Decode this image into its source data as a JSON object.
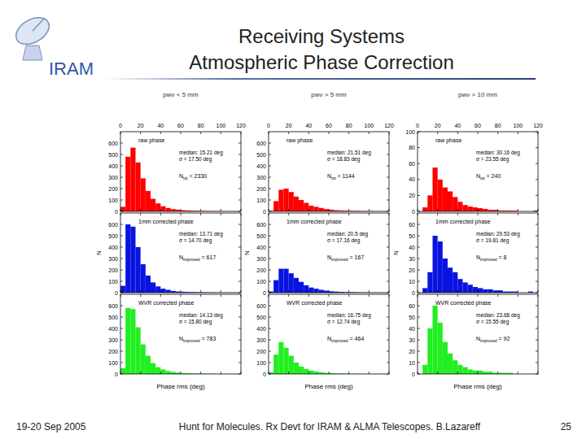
{
  "slide": {
    "logo_text": "IRAM",
    "title_lines": [
      "Receiving Systems",
      "Atmospheric Phase Correction"
    ],
    "footer_left": "19-20 Sep 2005",
    "footer_center": "Hunt for Molecules. Rx Devt for IRAM & ALMA Telescopes. B.Lazareff",
    "page_number": "25"
  },
  "chart_data": [
    {
      "type": "histogram",
      "subtitle": "pwv < 5 mm",
      "title": "raw phase",
      "color": "#ff0000",
      "bins": [
        0,
        5,
        10,
        15,
        20,
        25,
        30,
        35,
        40,
        45,
        50,
        55,
        60,
        65,
        70,
        75,
        80,
        85,
        90,
        95,
        100,
        105,
        110,
        115,
        120
      ],
      "values": [
        40,
        480,
        560,
        430,
        290,
        180,
        110,
        70,
        45,
        30,
        20,
        15,
        10,
        8,
        6,
        5,
        4,
        3,
        2,
        2,
        1,
        1,
        1,
        1
      ],
      "xlim": [
        0,
        120
      ],
      "xticks": [
        0,
        20,
        40,
        60,
        80,
        100,
        120
      ],
      "ylim": [
        0,
        700
      ],
      "yticks": [
        0,
        100,
        200,
        300,
        400,
        500,
        600
      ],
      "annotations": [
        "median: 15.21 deg",
        "σ = 17.50 deg",
        {
          "text": "N",
          "sub": "tot",
          "rest": " = 2330"
        }
      ]
    },
    {
      "type": "histogram",
      "title": "1mm corrected phase",
      "color": "#0a14e0",
      "ylabel": "N",
      "tick_labels": "y",
      "bins": [
        0,
        5,
        10,
        15,
        20,
        25,
        30,
        35,
        40,
        45,
        50,
        55,
        60,
        65,
        70,
        75,
        80,
        85,
        90,
        95,
        100,
        105,
        110,
        115,
        120
      ],
      "values": [
        60,
        600,
        580,
        400,
        250,
        150,
        90,
        55,
        35,
        25,
        15,
        10,
        8,
        6,
        5,
        4,
        3,
        2,
        2,
        1,
        1,
        1,
        1,
        1
      ],
      "xlim": [
        0,
        120
      ],
      "xticks": [
        0,
        20,
        40,
        60,
        80,
        100,
        120
      ],
      "ylim": [
        0,
        700
      ],
      "yticks": [
        0,
        100,
        200,
        300,
        400,
        500,
        600
      ],
      "annotations": [
        "median: 13.71 deg",
        "σ = 14.70 deg",
        {
          "text": "N",
          "sub": "improved",
          "rest": " = 617"
        }
      ]
    },
    {
      "type": "histogram",
      "title": "WVR corrected phase",
      "color": "#22ee22",
      "xlabel": "Phase rms (deg)",
      "tick_labels": "y",
      "bins": [
        0,
        5,
        10,
        15,
        20,
        25,
        30,
        35,
        40,
        45,
        50,
        55,
        60,
        65,
        70,
        75,
        80,
        85,
        90,
        95,
        100,
        105,
        110,
        115,
        120
      ],
      "values": [
        50,
        580,
        570,
        410,
        260,
        160,
        95,
        60,
        40,
        25,
        18,
        12,
        8,
        6,
        5,
        4,
        3,
        2,
        2,
        1,
        1,
        1,
        1,
        1
      ],
      "xlim": [
        0,
        120
      ],
      "xticks": [
        0,
        20,
        40,
        60,
        80,
        100,
        120
      ],
      "ylim": [
        0,
        700
      ],
      "yticks": [
        0,
        100,
        200,
        300,
        400,
        500,
        600
      ],
      "annotations": [
        "median: 14.13 deg",
        "σ = 15.80 deg",
        {
          "text": "N",
          "sub": "improved",
          "rest": " = 783"
        }
      ]
    },
    {
      "type": "histogram",
      "subtitle": "pwv > 5 mm",
      "title": "raw phase",
      "color": "#ff0000",
      "bins": [
        0,
        5,
        10,
        15,
        20,
        25,
        30,
        35,
        40,
        45,
        50,
        55,
        60,
        65,
        70,
        75,
        80,
        85,
        90,
        95,
        100,
        105,
        110,
        115,
        120
      ],
      "values": [
        5,
        90,
        190,
        200,
        170,
        130,
        100,
        75,
        50,
        40,
        30,
        20,
        15,
        10,
        8,
        6,
        5,
        4,
        3,
        2,
        2,
        1,
        1,
        1
      ],
      "xlim": [
        0,
        120
      ],
      "xticks": [
        0,
        20,
        40,
        60,
        80,
        100,
        120
      ],
      "ylim": [
        0,
        700
      ],
      "yticks": [
        0,
        100,
        200,
        300,
        400,
        500,
        600
      ],
      "annotations": [
        "median: 21.51 deg",
        "σ = 18.83 deg",
        {
          "text": "N",
          "sub": "tot",
          "rest": " = 1144"
        }
      ]
    },
    {
      "type": "histogram",
      "title": "1mm corrected phase",
      "color": "#0a14e0",
      "ylabel": "N",
      "tick_labels": "y",
      "bins": [
        0,
        5,
        10,
        15,
        20,
        25,
        30,
        35,
        40,
        45,
        50,
        55,
        60,
        65,
        70,
        75,
        80,
        85,
        90,
        95,
        100,
        105,
        110,
        115,
        120
      ],
      "values": [
        10,
        110,
        210,
        210,
        170,
        130,
        95,
        65,
        45,
        35,
        25,
        18,
        12,
        9,
        7,
        5,
        4,
        3,
        2,
        2,
        1,
        1,
        1,
        1
      ],
      "xlim": [
        0,
        120
      ],
      "xticks": [
        0,
        20,
        40,
        60,
        80,
        100,
        120
      ],
      "ylim": [
        0,
        700
      ],
      "yticks": [
        0,
        100,
        200,
        300,
        400,
        500,
        600
      ],
      "annotations": [
        "median: 20.5 deg",
        "σ = 17.16 deg",
        {
          "text": "N",
          "sub": "improved",
          "rest": " = 167"
        }
      ]
    },
    {
      "type": "histogram",
      "title": "WVR corrected phase",
      "color": "#22ee22",
      "xlabel": "Phase rms (deg)",
      "tick_labels": "y",
      "bins": [
        0,
        5,
        10,
        15,
        20,
        25,
        30,
        35,
        40,
        45,
        50,
        55,
        60,
        65,
        70,
        75,
        80,
        85,
        90,
        95,
        100,
        105,
        110,
        115,
        120
      ],
      "values": [
        15,
        170,
        280,
        230,
        160,
        100,
        65,
        45,
        30,
        22,
        15,
        10,
        8,
        6,
        4,
        3,
        2,
        2,
        1,
        1,
        1,
        1,
        1,
        1
      ],
      "xlim": [
        0,
        120
      ],
      "xticks": [
        0,
        20,
        40,
        60,
        80,
        100,
        120
      ],
      "ylim": [
        0,
        700
      ],
      "yticks": [
        0,
        100,
        200,
        300,
        400,
        500,
        600
      ],
      "annotations": [
        "median: 16.75 deg",
        "σ = 12.74 deg",
        {
          "text": "N",
          "sub": "improved",
          "rest": " = 464"
        }
      ]
    },
    {
      "type": "histogram",
      "subtitle": "pwv > 10 mm",
      "title": "raw phase",
      "color": "#ff0000",
      "bins": [
        0,
        5,
        10,
        15,
        20,
        25,
        30,
        35,
        40,
        45,
        50,
        55,
        60,
        65,
        70,
        75,
        80,
        85,
        90,
        95,
        100,
        105,
        110,
        115,
        120
      ],
      "values": [
        0,
        5,
        20,
        55,
        40,
        30,
        25,
        18,
        12,
        8,
        6,
        5,
        4,
        3,
        2,
        2,
        1,
        1,
        1,
        1,
        0,
        0,
        0,
        1
      ],
      "xlim": [
        0,
        120
      ],
      "xticks": [
        0,
        20,
        40,
        60,
        80,
        100,
        120
      ],
      "ylim": [
        0,
        100
      ],
      "yticks": [
        0,
        20,
        40,
        60,
        80,
        100
      ],
      "annotations": [
        "median: 30.16 deg",
        "σ = 23.55 deg",
        {
          "text": "N",
          "sub": "tot",
          "rest": " = 240"
        }
      ]
    },
    {
      "type": "histogram",
      "title": "1mm corrected phase",
      "color": "#0a14e0",
      "ylabel": "N",
      "tick_labels": "y",
      "bins": [
        0,
        5,
        10,
        15,
        20,
        25,
        30,
        35,
        40,
        45,
        50,
        55,
        60,
        65,
        70,
        75,
        80,
        85,
        90,
        95,
        100,
        105,
        110,
        115,
        120
      ],
      "values": [
        0,
        4,
        18,
        50,
        45,
        30,
        22,
        18,
        12,
        9,
        7,
        5,
        4,
        3,
        3,
        2,
        2,
        1,
        1,
        1,
        0,
        0,
        1,
        0
      ],
      "xlim": [
        0,
        120
      ],
      "xticks": [
        0,
        20,
        40,
        60,
        80,
        100,
        120
      ],
      "ylim": [
        0,
        70
      ],
      "yticks": [
        0,
        10,
        20,
        30,
        40,
        50,
        60
      ],
      "annotations": [
        "median: 29.53 deg",
        "σ = 19.81 deg",
        {
          "text": "N",
          "sub": "improved",
          "rest": " = 8"
        }
      ]
    },
    {
      "type": "histogram",
      "title": "WVR corrected phase",
      "color": "#22ee22",
      "xlabel": "Phase rms (deg)",
      "tick_labels": "y",
      "bins": [
        0,
        5,
        10,
        15,
        20,
        25,
        30,
        35,
        40,
        45,
        50,
        55,
        60,
        65,
        70,
        75,
        80,
        85,
        90,
        95,
        100,
        105,
        110,
        115,
        120
      ],
      "values": [
        0,
        8,
        40,
        60,
        45,
        28,
        18,
        12,
        8,
        6,
        4,
        3,
        3,
        2,
        2,
        1,
        1,
        1,
        1,
        0,
        0,
        0,
        0,
        0
      ],
      "xlim": [
        0,
        120
      ],
      "xticks": [
        0,
        20,
        40,
        60,
        80,
        100,
        120
      ],
      "ylim": [
        0,
        70
      ],
      "yticks": [
        0,
        10,
        20,
        30,
        40,
        50,
        60
      ],
      "annotations": [
        "median: 23.68 deg",
        "σ = 15.55 deg",
        {
          "text": "N",
          "sub": "improved",
          "rest": " = 92"
        }
      ]
    }
  ]
}
